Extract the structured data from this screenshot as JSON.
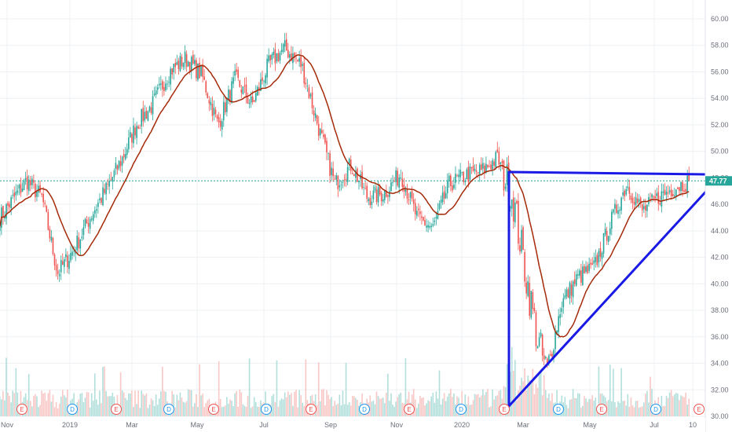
{
  "colors": {
    "up": "#26a69a",
    "down": "#ef5350",
    "ma": "#a52a0a",
    "drawing": "#1a1ae6",
    "last_price": "#26a69a",
    "earnings_marker": "#ef5350",
    "dividend_marker": "#2196f3",
    "volume_up": "#b2dfdb",
    "volume_down": "#f8c8c6"
  },
  "price_scale": {
    "ticks": [
      "60.00",
      "58.00",
      "56.00",
      "54.00",
      "52.00",
      "50.00",
      "48.00",
      "46.00",
      "44.00",
      "42.00",
      "40.00",
      "38.00",
      "36.00",
      "34.00",
      "32.00",
      "30.00"
    ]
  },
  "time_axis": {
    "labels": [
      "Nov",
      "2019",
      "Mar",
      "May",
      "Jul",
      "Sep",
      "Nov",
      "2020",
      "Mar",
      "May",
      "Jul",
      "10"
    ]
  },
  "last_price": {
    "label": "47.77",
    "value": 47.77
  },
  "event_markers": [
    {
      "type": "E",
      "icon": "earnings-marker-icon"
    },
    {
      "type": "D",
      "icon": "dividend-marker-icon"
    },
    {
      "type": "E",
      "icon": "earnings-marker-icon"
    },
    {
      "type": "D",
      "icon": "dividend-marker-icon"
    },
    {
      "type": "E",
      "icon": "earnings-marker-icon"
    },
    {
      "type": "D",
      "icon": "dividend-marker-icon"
    },
    {
      "type": "E",
      "icon": "earnings-marker-icon"
    },
    {
      "type": "D",
      "icon": "dividend-marker-icon"
    },
    {
      "type": "E",
      "icon": "earnings-marker-icon"
    },
    {
      "type": "D",
      "icon": "dividend-marker-icon"
    },
    {
      "type": "E",
      "icon": "earnings-marker-icon"
    },
    {
      "type": "D",
      "icon": "dividend-marker-icon"
    },
    {
      "type": "E",
      "icon": "earnings-marker-icon"
    },
    {
      "type": "D",
      "icon": "dividend-marker-icon"
    },
    {
      "type": "E",
      "icon": "earnings-marker-icon"
    }
  ],
  "chart_data": {
    "type": "candlestick",
    "title": "",
    "xlabel": "",
    "ylabel": "",
    "ylim": [
      30,
      60
    ],
    "grid": true,
    "moving_average": "red-brown line",
    "series": {
      "close_path": [
        {
          "x": "2018-10-25",
          "y": 45.0
        },
        {
          "x": "2018-11-05",
          "y": 46.2
        },
        {
          "x": "2018-11-20",
          "y": 47.8
        },
        {
          "x": "2018-12-05",
          "y": 46.5
        },
        {
          "x": "2018-12-20",
          "y": 40.8
        },
        {
          "x": "2019-01-05",
          "y": 42.6
        },
        {
          "x": "2019-01-20",
          "y": 45.0
        },
        {
          "x": "2019-02-05",
          "y": 47.2
        },
        {
          "x": "2019-02-20",
          "y": 49.5
        },
        {
          "x": "2019-03-05",
          "y": 52.0
        },
        {
          "x": "2019-03-20",
          "y": 53.5
        },
        {
          "x": "2019-04-05",
          "y": 56.0
        },
        {
          "x": "2019-04-20",
          "y": 57.0
        },
        {
          "x": "2019-05-05",
          "y": 55.8
        },
        {
          "x": "2019-05-20",
          "y": 52.0
        },
        {
          "x": "2019-06-05",
          "y": 55.5
        },
        {
          "x": "2019-06-20",
          "y": 53.5
        },
        {
          "x": "2019-07-05",
          "y": 56.5
        },
        {
          "x": "2019-07-20",
          "y": 57.8
        },
        {
          "x": "2019-08-05",
          "y": 56.5
        },
        {
          "x": "2019-08-20",
          "y": 52.0
        },
        {
          "x": "2019-09-05",
          "y": 47.5
        },
        {
          "x": "2019-09-20",
          "y": 49.0
        },
        {
          "x": "2019-10-05",
          "y": 46.5
        },
        {
          "x": "2019-10-20",
          "y": 46.8
        },
        {
          "x": "2019-11-05",
          "y": 48.3
        },
        {
          "x": "2019-11-20",
          "y": 45.0
        },
        {
          "x": "2019-12-05",
          "y": 44.2
        },
        {
          "x": "2019-12-20",
          "y": 47.5
        },
        {
          "x": "2020-01-05",
          "y": 48.2
        },
        {
          "x": "2020-01-20",
          "y": 48.5
        },
        {
          "x": "2020-02-05",
          "y": 49.5
        },
        {
          "x": "2020-02-20",
          "y": 46.5
        },
        {
          "x": "2020-03-05",
          "y": 40.0
        },
        {
          "x": "2020-03-15",
          "y": 35.5
        },
        {
          "x": "2020-03-23",
          "y": 33.2
        },
        {
          "x": "2020-04-05",
          "y": 38.5
        },
        {
          "x": "2020-04-20",
          "y": 40.5
        },
        {
          "x": "2020-05-05",
          "y": 41.2
        },
        {
          "x": "2020-05-20",
          "y": 44.5
        },
        {
          "x": "2020-06-05",
          "y": 47.5
        },
        {
          "x": "2020-06-20",
          "y": 45.5
        },
        {
          "x": "2020-07-05",
          "y": 46.5
        },
        {
          "x": "2020-07-20",
          "y": 47.2
        },
        {
          "x": "2020-08-07",
          "y": 47.77
        }
      ]
    }
  }
}
